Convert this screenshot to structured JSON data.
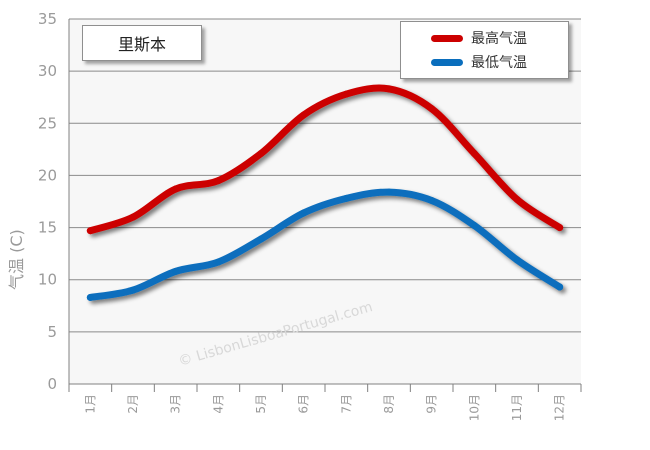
{
  "chart_data": {
    "type": "line",
    "title": "里斯本",
    "ylabel": "气温 (C)",
    "xlabel": "",
    "categories": [
      "1月",
      "2月",
      "3月",
      "4月",
      "5月",
      "6月",
      "7月",
      "8月",
      "9月",
      "10月",
      "11月",
      "12月"
    ],
    "ylim": [
      0,
      35
    ],
    "yticks": [
      0,
      5,
      10,
      15,
      20,
      25,
      30,
      35
    ],
    "grid": true,
    "legend_position": "top-right",
    "series": [
      {
        "name": "最高气温",
        "color": "#cc0000",
        "values": [
          14.7,
          16.0,
          18.7,
          19.5,
          22.1,
          25.8,
          27.8,
          28.3,
          26.4,
          22.1,
          17.7,
          15.0
        ]
      },
      {
        "name": "最低气温",
        "color": "#0a6ebd",
        "values": [
          8.3,
          9.0,
          10.8,
          11.7,
          13.9,
          16.4,
          17.8,
          18.4,
          17.6,
          15.2,
          11.9,
          9.3
        ]
      }
    ],
    "watermark": "© LisbonLisboaPortugal.com"
  }
}
